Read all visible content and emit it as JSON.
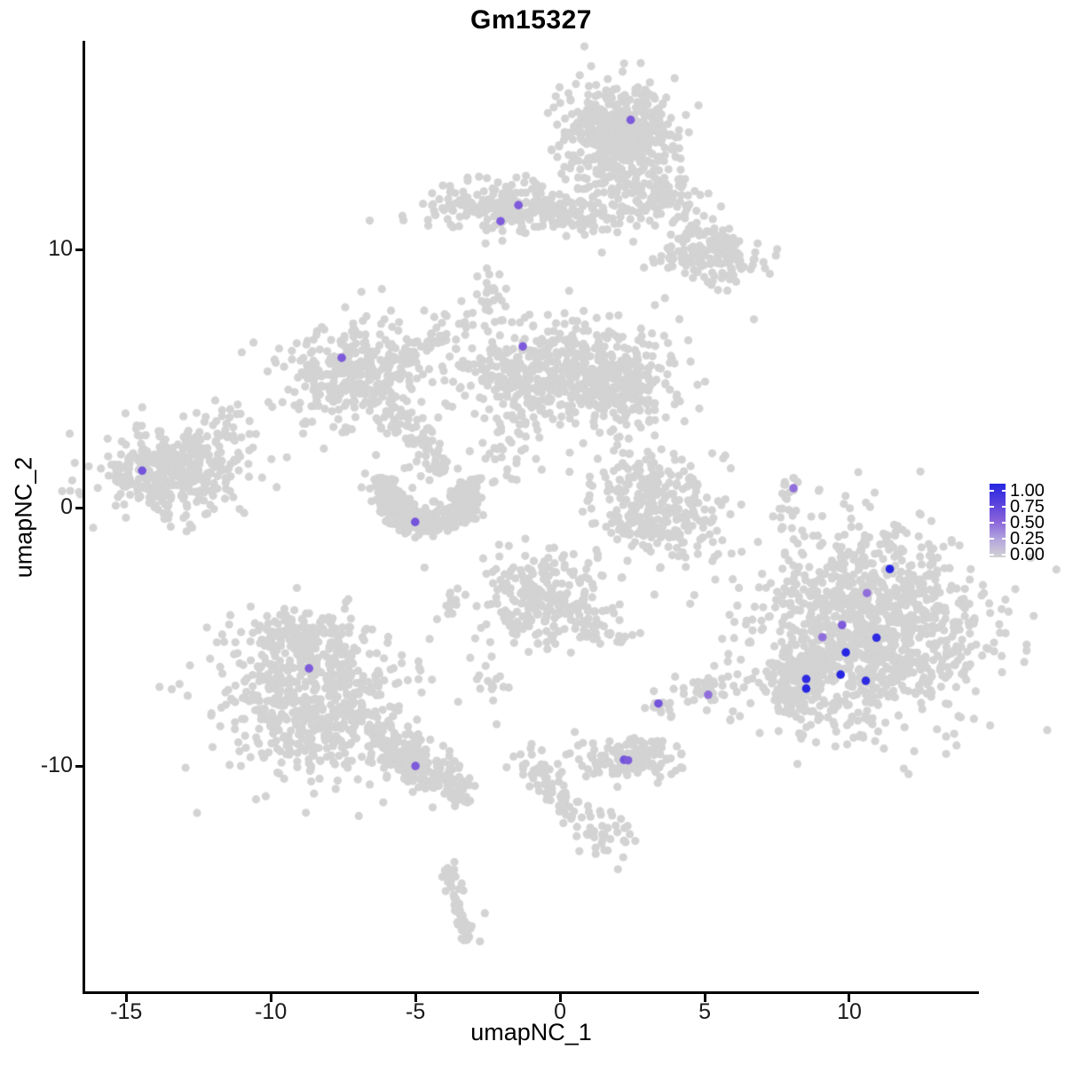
{
  "chart_data": {
    "type": "scatter",
    "title": "Gm15327",
    "xlabel": "umapNC_1",
    "ylabel": "umapNC_2",
    "xlim": [
      -16.45,
      14.45
    ],
    "ylim": [
      -18.76,
      18.05
    ],
    "grid": false,
    "legend_position": "right",
    "x_ticks": [
      {
        "label": "-15",
        "value": -15
      },
      {
        "label": "-10",
        "value": -10
      },
      {
        "label": "-5",
        "value": -5
      },
      {
        "label": "0",
        "value": 0
      },
      {
        "label": "5",
        "value": 5
      },
      {
        "label": "10",
        "value": 10
      }
    ],
    "y_ticks": [
      {
        "label": "10",
        "value": 10
      },
      {
        "label": "0",
        "value": 0
      },
      {
        "label": "-10",
        "value": -10
      }
    ],
    "legend": {
      "ticks": [
        {
          "label": "1.00",
          "value": 1.0
        },
        {
          "label": "0.75",
          "value": 0.75
        },
        {
          "label": "0.50",
          "value": 0.5
        },
        {
          "label": "0.25",
          "value": 0.25
        },
        {
          "label": "0.00",
          "value": 0.0
        }
      ]
    },
    "colors": {
      "background_dot": "#d3d3d3",
      "low": "#d3d3d3",
      "high": "#2626e2",
      "gradient_stops": [
        [
          0.0,
          "#d3d3d3"
        ],
        [
          0.25,
          "#b2a4de"
        ],
        [
          0.5,
          "#8862da"
        ],
        [
          0.75,
          "#5540dd"
        ],
        [
          1.0,
          "#2626e2"
        ]
      ]
    },
    "point_radius_px": 4.6,
    "background_clusters": [
      {
        "type": "gauss",
        "cx": 2.1,
        "cy": 14.5,
        "sx": 0.9,
        "sy": 0.92,
        "n": 560
      },
      {
        "type": "gauss",
        "cx": 2.3,
        "cy": 11.9,
        "sx": 1.05,
        "sy": 0.55,
        "n": 90
      },
      {
        "type": "line",
        "x1": 3.1,
        "y1": 13.0,
        "x2": 6.2,
        "y2": 9.3,
        "jitter": 0.45,
        "n": 80
      },
      {
        "type": "gauss",
        "cx": 5.1,
        "cy": 9.7,
        "sx": 0.85,
        "sy": 0.6,
        "n": 130
      },
      {
        "type": "gauss",
        "cx": -1.7,
        "cy": 11.65,
        "sx": 1.5,
        "sy": 0.5,
        "n": 250
      },
      {
        "type": "gauss",
        "cx": 0.9,
        "cy": 11.4,
        "sx": 0.8,
        "sy": 0.5,
        "n": 35
      },
      {
        "type": "line",
        "x1": -2.6,
        "y1": 9.3,
        "x2": -2.5,
        "y2": 7.2,
        "jitter": 0.3,
        "n": 26
      },
      {
        "type": "gauss",
        "cx": -7.15,
        "cy": 5.1,
        "sx": 1.2,
        "sy": 1.0,
        "n": 310
      },
      {
        "type": "line",
        "x1": -5.6,
        "y1": 5.6,
        "x2": -2.95,
        "y2": 7.5,
        "jitter": 0.3,
        "n": 45
      },
      {
        "type": "line",
        "x1": -6.2,
        "y1": 4.1,
        "x2": -4.5,
        "y2": 2.2,
        "jitter": 0.35,
        "n": 55
      },
      {
        "type": "line",
        "x1": -4.5,
        "y1": 2.2,
        "x2": -4.0,
        "y2": 1.2,
        "jitter": 0.3,
        "n": 25
      },
      {
        "type": "gauss",
        "cx": 0.0,
        "cy": 5.2,
        "sx": 1.9,
        "sy": 1.0,
        "n": 520
      },
      {
        "type": "gauss",
        "cx": 2.3,
        "cy": 4.5,
        "sx": 0.8,
        "sy": 0.6,
        "n": 110
      },
      {
        "type": "gauss",
        "cx": -1.8,
        "cy": 2.4,
        "sx": 0.8,
        "sy": 0.9,
        "n": 45
      },
      {
        "type": "arc",
        "cx": -4.6,
        "cy": 0.9,
        "r": 1.5,
        "a1": 170,
        "a2": 370,
        "jitter": 0.28,
        "n": 380
      },
      {
        "type": "gauss",
        "cx": -13.4,
        "cy": 1.35,
        "sx": 1.25,
        "sy": 0.85,
        "n": 400
      },
      {
        "type": "gauss",
        "cx": -11.6,
        "cy": 2.9,
        "sx": 0.5,
        "sy": 0.6,
        "n": 25
      },
      {
        "type": "gauss",
        "cx": 3.15,
        "cy": 0.1,
        "sx": 1.05,
        "sy": 1.15,
        "n": 300
      },
      {
        "type": "line",
        "x1": 8.05,
        "y1": 1.15,
        "x2": 7.6,
        "y2": -0.85,
        "jitter": 0.14,
        "n": 22
      },
      {
        "type": "gauss",
        "cx": 10.6,
        "cy": -4.6,
        "sx": 1.95,
        "sy": 1.95,
        "n": 1050
      },
      {
        "type": "gauss",
        "cx": 8.2,
        "cy": -6.8,
        "sx": 0.75,
        "sy": 0.8,
        "n": 160
      },
      {
        "type": "gauss",
        "cx": -8.5,
        "cy": -7.3,
        "sx": 1.6,
        "sy": 1.5,
        "n": 650
      },
      {
        "type": "gauss",
        "cx": -9.1,
        "cy": -4.95,
        "sx": 0.8,
        "sy": 0.5,
        "n": 80
      },
      {
        "type": "line",
        "x1": -6.5,
        "y1": -8.85,
        "x2": -3.6,
        "y2": -10.7,
        "jitter": 0.42,
        "n": 230
      },
      {
        "type": "line",
        "x1": -3.6,
        "y1": -10.7,
        "x2": -3.3,
        "y2": -11.3,
        "jitter": 0.3,
        "n": 20
      },
      {
        "type": "line",
        "x1": -3.55,
        "y1": -2.9,
        "x2": -3.75,
        "y2": -4.2,
        "jitter": 0.15,
        "n": 12
      },
      {
        "type": "gauss",
        "cx": -0.5,
        "cy": -3.5,
        "sx": 1.1,
        "sy": 0.95,
        "n": 230
      },
      {
        "type": "line",
        "x1": 0.6,
        "y1": -4.2,
        "x2": 1.9,
        "y2": -5.1,
        "jitter": 0.25,
        "n": 25
      },
      {
        "type": "gauss",
        "cx": 2.3,
        "cy": -4.9,
        "sx": 0.25,
        "sy": 0.2,
        "n": 6
      },
      {
        "type": "gauss",
        "cx": -2.4,
        "cy": -6.6,
        "sx": 0.4,
        "sy": 0.65,
        "n": 18
      },
      {
        "type": "gauss",
        "cx": 3.4,
        "cy": -7.55,
        "sx": 0.3,
        "sy": 0.35,
        "n": 14
      },
      {
        "type": "gauss",
        "cx": 5.15,
        "cy": -7.2,
        "sx": 0.55,
        "sy": 0.5,
        "n": 40
      },
      {
        "type": "gauss",
        "cx": 2.4,
        "cy": -9.7,
        "sx": 0.85,
        "sy": 0.4,
        "n": 150
      },
      {
        "type": "line",
        "x1": -1.3,
        "y1": -9.4,
        "x2": 1.0,
        "y2": -12.4,
        "jitter": 0.3,
        "n": 70
      },
      {
        "type": "gauss",
        "cx": 1.6,
        "cy": -12.6,
        "sx": 0.6,
        "sy": 0.4,
        "n": 30
      },
      {
        "type": "line",
        "x1": -3.9,
        "y1": -13.9,
        "x2": -3.2,
        "y2": -16.9,
        "jitter": 0.18,
        "n": 55
      }
    ],
    "scattered_points": [
      [
        -10.6,
        6.4
      ],
      [
        6.7,
        7.3
      ],
      [
        -2.6,
        -15.7
      ],
      [
        -12.0,
        3.2
      ],
      [
        -11.3,
        2.8
      ],
      [
        2.6,
        -12.9
      ],
      [
        0.8,
        2.5
      ],
      [
        1.3,
        1.9
      ],
      [
        5.3,
        -0.4
      ],
      [
        -9.8,
        0.8
      ],
      [
        -1.2,
        -1.2
      ],
      [
        2.0,
        -14.0
      ]
    ],
    "expressing_cells": [
      {
        "x": 2.44,
        "y": 15.02,
        "expression": 0.55
      },
      {
        "x": -1.44,
        "y": 11.72,
        "expression": 0.55
      },
      {
        "x": -2.06,
        "y": 11.1,
        "expression": 0.55
      },
      {
        "x": -1.29,
        "y": 6.25,
        "expression": 0.55
      },
      {
        "x": -7.55,
        "y": 5.81,
        "expression": 0.55
      },
      {
        "x": -14.45,
        "y": 1.44,
        "expression": 0.6
      },
      {
        "x": -5.01,
        "y": -0.55,
        "expression": 0.6
      },
      {
        "x": 8.07,
        "y": 0.76,
        "expression": 0.45
      },
      {
        "x": 11.4,
        "y": -2.37,
        "expression": 1.0
      },
      {
        "x": 10.61,
        "y": -3.3,
        "expression": 0.45
      },
      {
        "x": 9.75,
        "y": -4.54,
        "expression": 0.55
      },
      {
        "x": 9.07,
        "y": -5.01,
        "expression": 0.45
      },
      {
        "x": 10.94,
        "y": -5.03,
        "expression": 0.95
      },
      {
        "x": 9.88,
        "y": -5.6,
        "expression": 1.0
      },
      {
        "x": 9.7,
        "y": -6.46,
        "expression": 1.0
      },
      {
        "x": 10.57,
        "y": -6.7,
        "expression": 0.95
      },
      {
        "x": 8.51,
        "y": -6.63,
        "expression": 0.95
      },
      {
        "x": 8.51,
        "y": -7.0,
        "expression": 1.0
      },
      {
        "x": -8.68,
        "y": -6.22,
        "expression": 0.55
      },
      {
        "x": -5.0,
        "y": -10.0,
        "expression": 0.55
      },
      {
        "x": 3.4,
        "y": -7.58,
        "expression": 0.6
      },
      {
        "x": 5.12,
        "y": -7.24,
        "expression": 0.45
      },
      {
        "x": 2.21,
        "y": -9.76,
        "expression": 0.6
      },
      {
        "x": 2.35,
        "y": -9.78,
        "expression": 0.55
      }
    ]
  }
}
